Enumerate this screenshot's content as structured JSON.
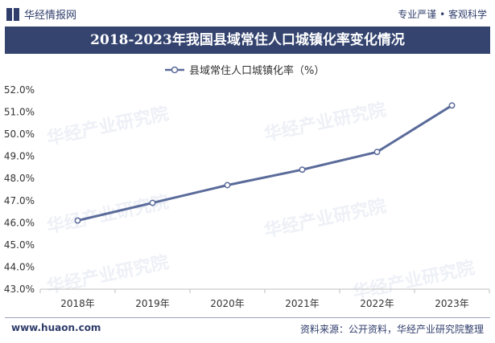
{
  "brand": {
    "name": "华经情报网",
    "slogan": "专业严谨 • 客观科学"
  },
  "watermark": "华经产业研究院",
  "header": {
    "title": "2018-2023年我国县域常住人口城镇化率变化情况"
  },
  "footer": {
    "website": "www.huaon.com",
    "source": "资料来源：公开资料，华经产业研究院整理"
  },
  "colors": {
    "line": "#5a6b9a",
    "title_bg": "#34446f",
    "brand": "#2f3d6b"
  },
  "chart_data": {
    "type": "line",
    "title": "2018-2023年我国县域常住人口城镇化率变化情况",
    "xlabel": "",
    "ylabel": "",
    "categories": [
      "2018年",
      "2019年",
      "2020年",
      "2021年",
      "2022年",
      "2023年"
    ],
    "series": [
      {
        "name": "县域常住人口城镇化率（%）",
        "values": [
          46.1,
          46.9,
          47.7,
          48.4,
          49.2,
          51.3
        ]
      }
    ],
    "ylim": [
      43.0,
      52.0
    ],
    "yticks": [
      "43.0%",
      "44.0%",
      "45.0%",
      "46.0%",
      "47.0%",
      "48.0%",
      "49.0%",
      "50.0%",
      "51.0%",
      "52.0%"
    ],
    "grid": false,
    "legend": "top-center"
  }
}
